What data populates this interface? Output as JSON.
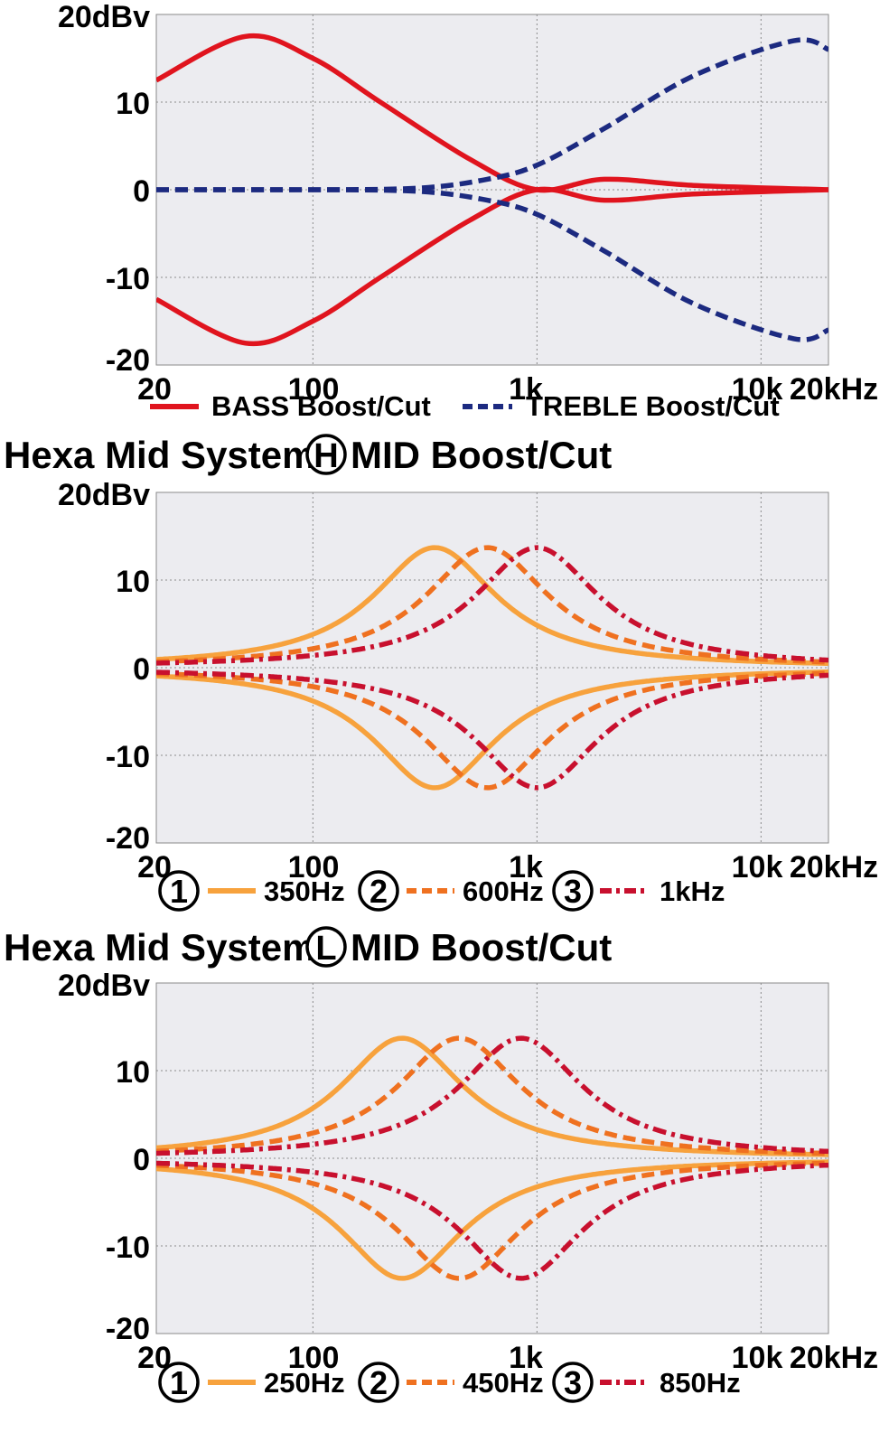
{
  "chart_data": [
    {
      "type": "line",
      "title": "",
      "xscale": "log",
      "xlim": [
        20,
        20000
      ],
      "ylim": [
        -20,
        20
      ],
      "grid": true,
      "y_ticks": [
        {
          "value": 20,
          "label": "20dBv"
        },
        {
          "value": 10,
          "label": "10"
        },
        {
          "value": 0,
          "label": "0"
        },
        {
          "value": -10,
          "label": "-10"
        },
        {
          "value": -20,
          "label": "-20"
        }
      ],
      "x_ticks": [
        {
          "value": 20,
          "label": "20"
        },
        {
          "value": 100,
          "label": "100"
        },
        {
          "value": 1000,
          "label": "1k"
        },
        {
          "value": 10000,
          "label": "10k"
        },
        {
          "value": 20000,
          "label": "20kHz"
        }
      ],
      "series": [
        {
          "name": "BASS Boost",
          "legend": "BASS Boost/Cut",
          "style": "solid",
          "color": "#e0141e",
          "x": [
            20,
            50,
            100,
            200,
            500,
            1000,
            2000,
            5000,
            20000
          ],
          "y": [
            12.5,
            17.5,
            15,
            10,
            3.5,
            0,
            1.2,
            0.5,
            0
          ]
        },
        {
          "name": "BASS Cut",
          "style": "solid",
          "color": "#e0141e",
          "x": [
            20,
            50,
            100,
            200,
            500,
            1000,
            2000,
            5000,
            20000
          ],
          "y": [
            -12.5,
            -17.5,
            -15,
            -10,
            -3.5,
            0,
            -1.2,
            -0.5,
            0
          ]
        },
        {
          "name": "TREBLE Boost",
          "legend": "TREBLE Boost/Cut",
          "style": "dashed",
          "color": "#1c2a80",
          "x": [
            20,
            100,
            300,
            600,
            1000,
            2000,
            5000,
            14000,
            20000
          ],
          "y": [
            0,
            0,
            0.2,
            1.2,
            2.8,
            7,
            13,
            17,
            16
          ]
        },
        {
          "name": "TREBLE Cut",
          "style": "dashed",
          "color": "#1c2a80",
          "x": [
            20,
            100,
            300,
            600,
            1000,
            2000,
            5000,
            14000,
            20000
          ],
          "y": [
            0,
            0,
            -0.2,
            -1.2,
            -2.8,
            -7,
            -13,
            -17,
            -16
          ]
        }
      ]
    },
    {
      "type": "line",
      "title": "Hexa Mid System",
      "title_badge": "H",
      "title_suffix": "MID Boost/Cut",
      "xscale": "log",
      "xlim": [
        20,
        20000
      ],
      "ylim": [
        -20,
        20
      ],
      "grid": true,
      "y_ticks": [
        {
          "value": 20,
          "label": "20dBv"
        },
        {
          "value": 10,
          "label": "10"
        },
        {
          "value": 0,
          "label": "0"
        },
        {
          "value": -10,
          "label": "-10"
        },
        {
          "value": -20,
          "label": "-20"
        }
      ],
      "x_ticks": [
        {
          "value": 20,
          "label": "20"
        },
        {
          "value": 100,
          "label": "100"
        },
        {
          "value": 1000,
          "label": "1k"
        },
        {
          "value": 10000,
          "label": "10k"
        },
        {
          "value": 20000,
          "label": "20kHz"
        }
      ],
      "peak_gain": 13.7,
      "series": [
        {
          "number": "1",
          "name": "350Hz",
          "center": 350,
          "style": "solid",
          "color": "#f7a23d"
        },
        {
          "number": "2",
          "name": "600Hz",
          "center": 600,
          "style": "dashed",
          "color": "#ef7120"
        },
        {
          "number": "3",
          "name": "1kHz",
          "center": 1000,
          "style": "dashdot",
          "color": "#c8102e"
        }
      ]
    },
    {
      "type": "line",
      "title": "Hexa Mid System",
      "title_badge": "L",
      "title_suffix": "MID Boost/Cut",
      "xscale": "log",
      "xlim": [
        20,
        20000
      ],
      "ylim": [
        -20,
        20
      ],
      "grid": true,
      "y_ticks": [
        {
          "value": 20,
          "label": "20dBv"
        },
        {
          "value": 10,
          "label": "10"
        },
        {
          "value": 0,
          "label": "0"
        },
        {
          "value": -10,
          "label": "-10"
        },
        {
          "value": -20,
          "label": "-20"
        }
      ],
      "x_ticks": [
        {
          "value": 20,
          "label": "20"
        },
        {
          "value": 100,
          "label": "100"
        },
        {
          "value": 1000,
          "label": "1k"
        },
        {
          "value": 10000,
          "label": "10k"
        },
        {
          "value": 20000,
          "label": "20kHz"
        }
      ],
      "peak_gain": 13.7,
      "series": [
        {
          "number": "1",
          "name": "250Hz",
          "center": 250,
          "style": "solid",
          "color": "#f7a23d"
        },
        {
          "number": "2",
          "name": "450Hz",
          "center": 450,
          "style": "dashed",
          "color": "#ef7120"
        },
        {
          "number": "3",
          "name": "850Hz",
          "center": 850,
          "style": "dashdot",
          "color": "#c8102e"
        }
      ]
    }
  ]
}
